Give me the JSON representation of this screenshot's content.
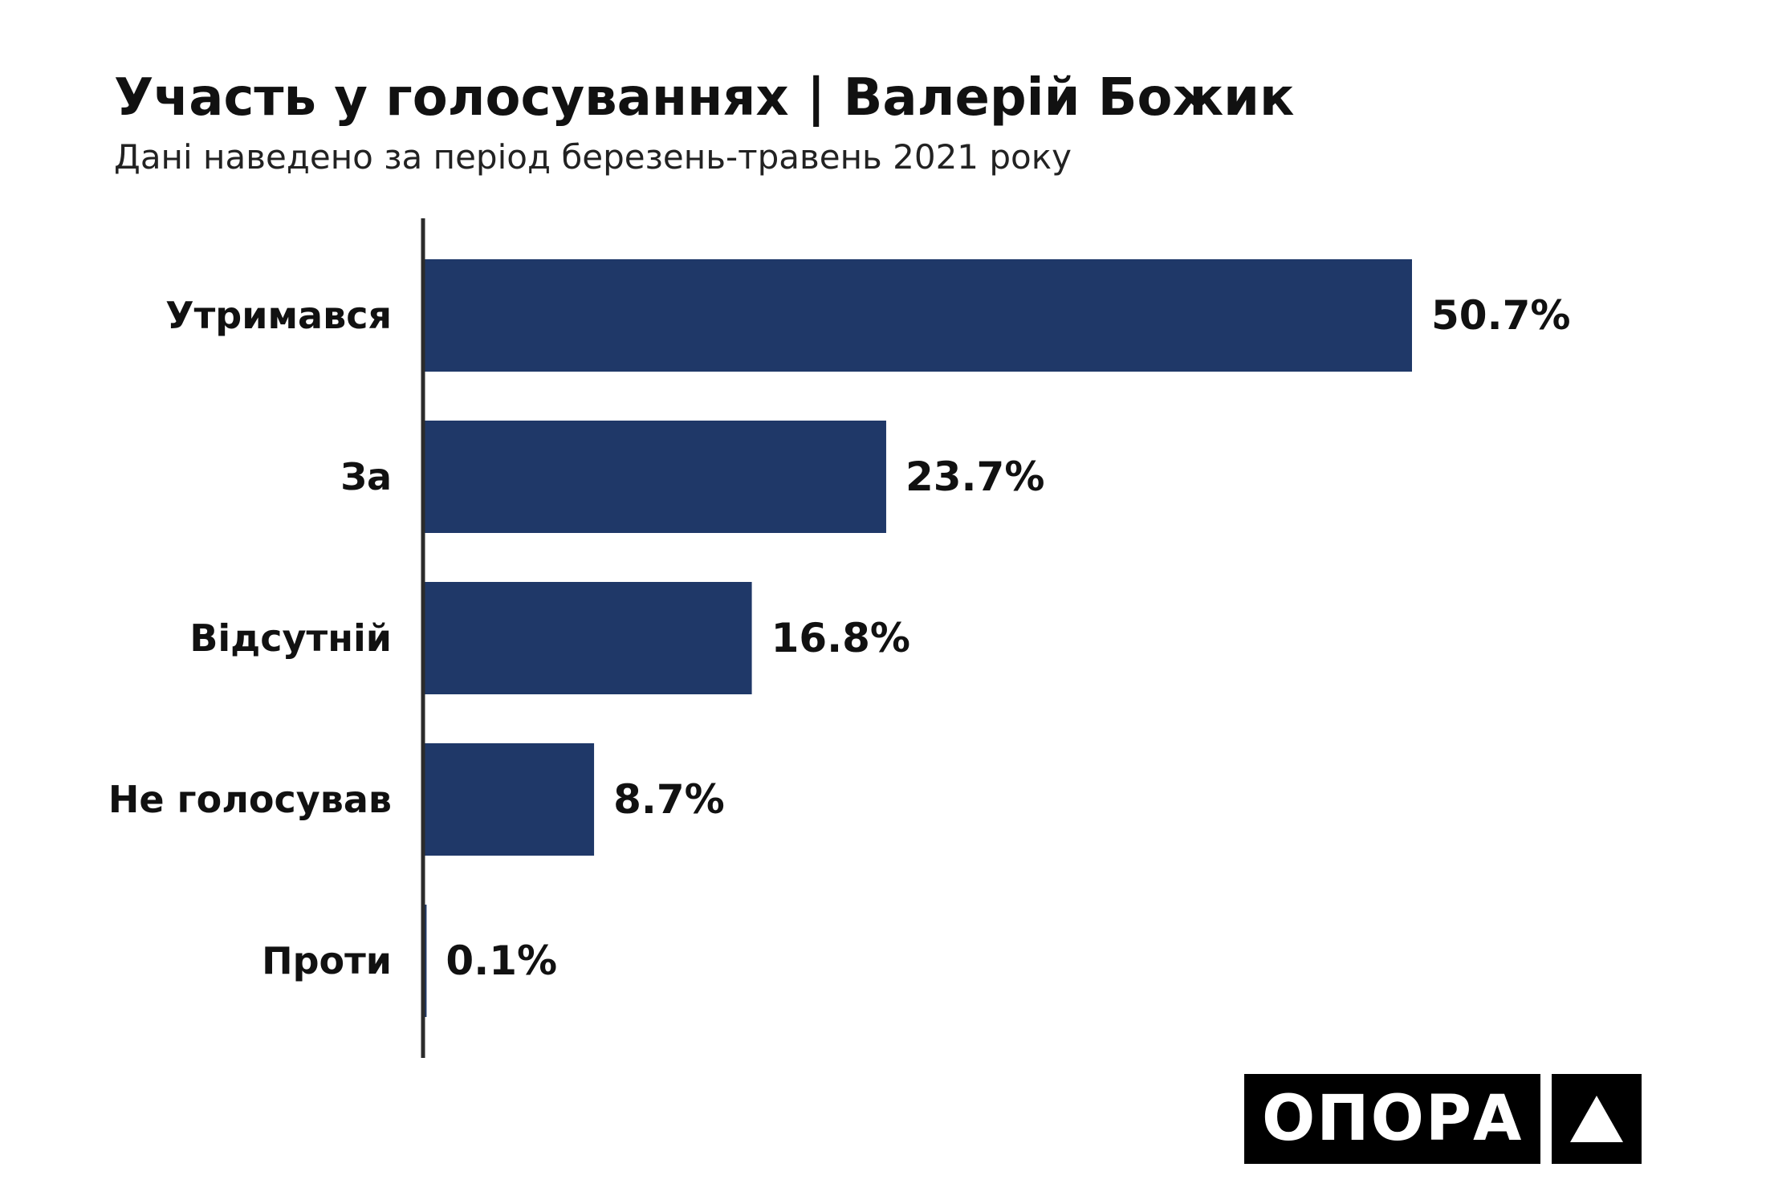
{
  "chart_data": {
    "type": "bar",
    "orientation": "horizontal",
    "title": "Участь у голосуваннях | Валерій Божик",
    "subtitle": "Дані наведено за період березень-травень 2021 року",
    "categories": [
      "Утримався",
      "За",
      "Відсутній",
      "Не голосував",
      "Проти"
    ],
    "values": [
      50.7,
      23.7,
      16.8,
      8.7,
      0.1
    ],
    "value_labels": [
      "50.7%",
      "23.7%",
      "16.8%",
      "8.7%",
      "0.1%"
    ],
    "xlim": [
      0,
      55
    ],
    "grid": false,
    "bar_color": "#1f3868"
  },
  "logo": {
    "text": "ОПОРА"
  }
}
